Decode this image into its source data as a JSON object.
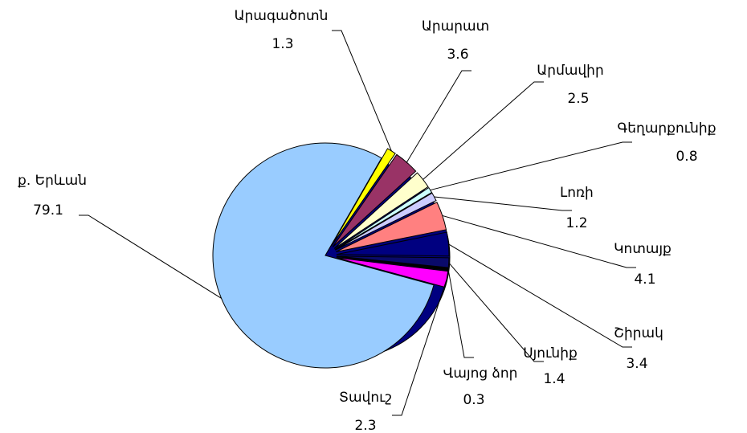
{
  "chart_data": {
    "type": "pie",
    "categories": [
      "ք. Երևան",
      "Արագածոտն",
      "Արարատ",
      "Արմավիր",
      "Գեղարքունիք",
      "Լոռի",
      "Կոտայք",
      "Շիրակ",
      "Սյունիք",
      "Վայոց ձոր",
      "Տավուշ"
    ],
    "values": [
      79.1,
      1.3,
      3.6,
      2.5,
      0.8,
      1.2,
      4.1,
      3.4,
      1.4,
      0.3,
      2.3
    ],
    "colors": [
      "#99ccff",
      "#ffff00",
      "#993366",
      "#ffffcc",
      "#ccffff",
      "#ccccff",
      "#ff8080",
      "#000080",
      "#0a0a6a",
      "#000000",
      "#ff00ff"
    ]
  }
}
